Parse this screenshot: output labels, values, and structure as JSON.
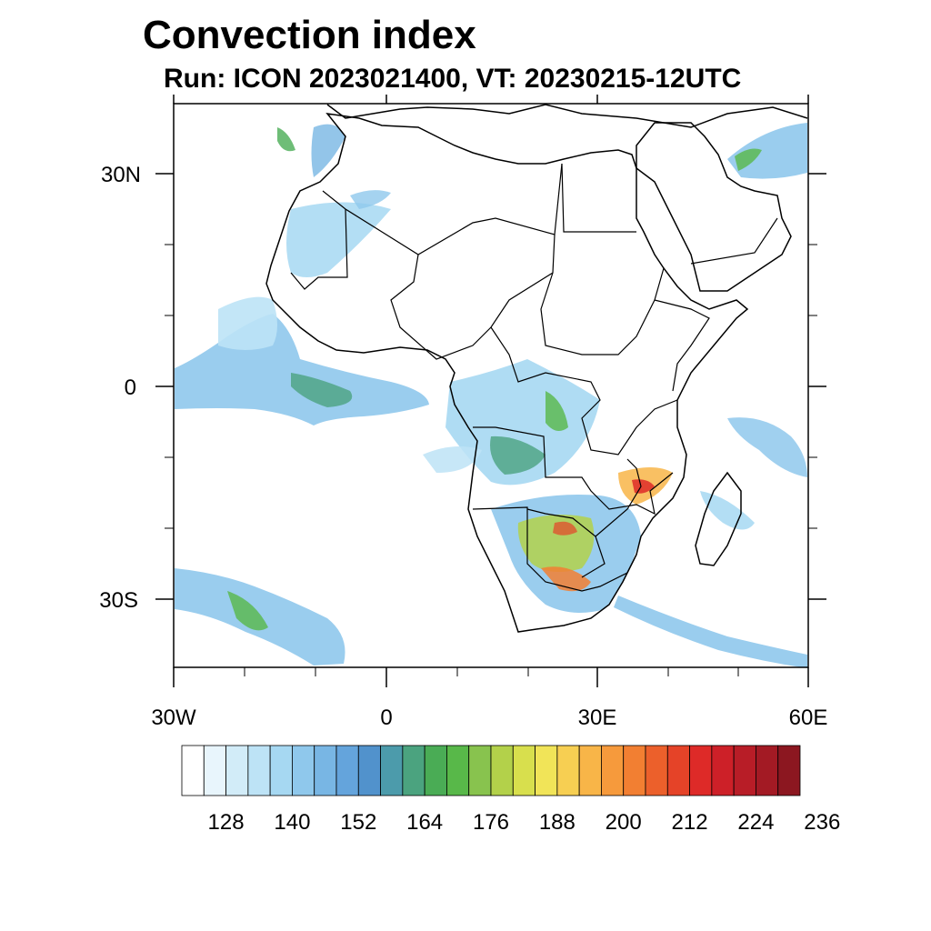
{
  "header": {
    "title": "Convection index",
    "subtitle": "Run: ICON 2023021400,  VT: 20230215-12UTC"
  },
  "axes": {
    "lat_labels": [
      "30N",
      "0",
      "30S"
    ],
    "lon_labels": [
      "30W",
      "0",
      "30E",
      "60E"
    ]
  },
  "colorbar": {
    "tick_labels": [
      "128",
      "140",
      "152",
      "164",
      "176",
      "188",
      "200",
      "212",
      "224",
      "236"
    ],
    "colors": [
      "#ffffff",
      "#e8f5fc",
      "#d2ecf8",
      "#bde3f6",
      "#a6d8f2",
      "#8fc8ec",
      "#78b6e4",
      "#64a4dc",
      "#5192cc",
      "#4c9bab",
      "#4ba37f",
      "#4aac55",
      "#58b849",
      "#88c34e",
      "#b3d14a",
      "#d8df4d",
      "#f1e458",
      "#f7cf52",
      "#f8b548",
      "#f69a3c",
      "#f27f32",
      "#ec602b",
      "#e54328",
      "#de2a28",
      "#cd2028",
      "#b81d27",
      "#a31a24",
      "#8c1720"
    ]
  },
  "colors": {
    "coast": "#000000",
    "frame": "#000000"
  }
}
